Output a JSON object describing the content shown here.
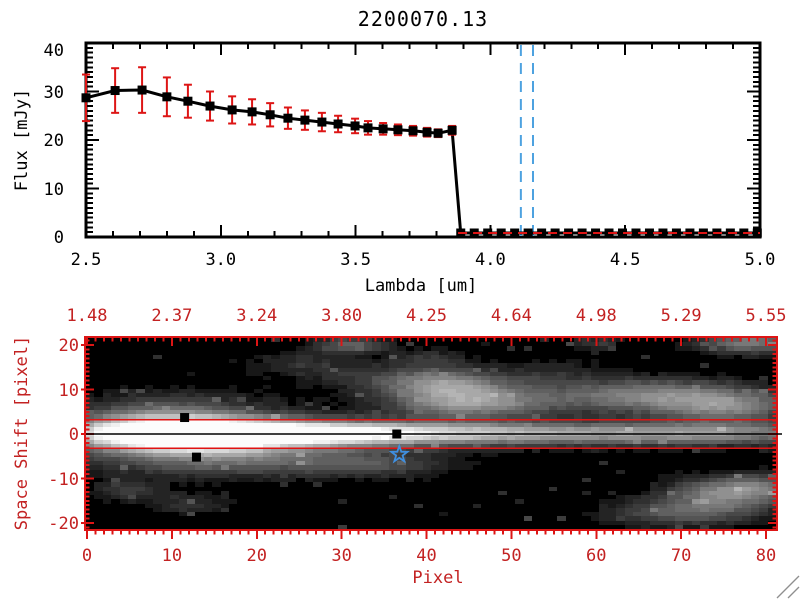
{
  "title": "2200070.13",
  "chart_data": [
    {
      "id": "spectrum-plot",
      "type": "line",
      "title": "2200070.13",
      "xlabel": "Lambda [um]",
      "ylabel": "Flux [mJy]",
      "xlim": [
        2.5,
        5.0
      ],
      "ylim": [
        0,
        40
      ],
      "grid": false,
      "x_ticks": {
        "values": [
          2.5,
          3.0,
          3.5,
          4.0,
          4.5,
          5.0
        ],
        "labels": [
          "2.5",
          "3.0",
          "3.5",
          "4.0",
          "4.5",
          "5.0"
        ],
        "minor_step": 0.1
      },
      "y_ticks": {
        "values": [
          0,
          10,
          20,
          30,
          40
        ],
        "labels": [
          "0",
          "10",
          "20",
          "30",
          "40"
        ],
        "minor_step": 1
      },
      "frame_color": "#000000",
      "series": [
        {
          "name": "spectrum",
          "line_color": "#000000",
          "marker": "square",
          "marker_color": "#000000",
          "error_color": "#dd1515",
          "x": [
            2.5,
            2.608,
            2.708,
            2.8,
            2.878,
            2.96,
            3.042,
            3.116,
            3.183,
            3.249,
            3.312,
            3.375,
            3.435,
            3.498,
            3.546,
            3.602,
            3.657,
            3.713,
            3.765,
            3.806,
            3.858,
            3.89,
            3.94,
            3.99,
            4.04,
            4.09,
            4.14,
            4.19,
            4.24,
            4.29,
            4.34,
            4.39,
            4.44,
            4.49,
            4.54,
            4.59,
            4.64,
            4.69,
            4.74,
            4.79,
            4.84,
            4.89,
            4.94,
            4.99
          ],
          "y": [
            28.7,
            30.2,
            30.3,
            28.9,
            28.0,
            27.0,
            26.2,
            25.8,
            25.2,
            24.5,
            24.1,
            23.7,
            23.3,
            22.9,
            22.5,
            22.3,
            22.1,
            21.9,
            21.6,
            21.4,
            22.0,
            0,
            0,
            0,
            0,
            0,
            0,
            0,
            0,
            0,
            0,
            0,
            0,
            0,
            0,
            0,
            0,
            0,
            0,
            0,
            0,
            0,
            0,
            0
          ],
          "yerr": [
            4.8,
            4.6,
            4.7,
            4.0,
            3.4,
            3.0,
            2.8,
            2.6,
            2.4,
            2.2,
            2.0,
            1.9,
            1.7,
            1.5,
            1.4,
            1.2,
            1.1,
            1.0,
            0.9,
            0.8,
            0.9,
            0,
            0,
            0,
            0,
            0,
            0,
            0,
            0,
            0,
            0,
            0,
            0,
            0,
            0,
            0,
            0,
            0,
            0,
            0,
            0,
            0,
            0,
            0
          ]
        }
      ],
      "zero_line": {
        "y": 0,
        "x_start": 3.88,
        "x_end": 5.0,
        "color": "#dd1515",
        "style": "dashed"
      },
      "vlines": {
        "x": [
          4.113,
          4.158
        ],
        "color": "#4da2e0",
        "style": "dashed"
      }
    },
    {
      "id": "spatial-map-plot",
      "type": "heatmap",
      "xlabel": "Pixel",
      "ylabel": "Space Shift [pixel]",
      "xlim": [
        0,
        80
      ],
      "ylim": [
        -21.7,
        21.7
      ],
      "axis_color": "#c32222",
      "tick_color": "#dd1515",
      "x_ticks": {
        "values": [
          0,
          10,
          20,
          30,
          40,
          50,
          60,
          70,
          80
        ],
        "labels": [
          "0",
          "10",
          "20",
          "30",
          "40",
          "50",
          "60",
          "70",
          "80"
        ],
        "minor_step": 1
      },
      "y_ticks": {
        "values": [
          -20,
          -10,
          0,
          10,
          20
        ],
        "labels": [
          "-20",
          "-10",
          "0",
          "10",
          "20"
        ],
        "minor_step": 1
      },
      "top_axis_labels": [
        "1.48",
        "2.37",
        "3.24",
        "3.80",
        "4.25",
        "4.64",
        "4.98",
        "5.29",
        "5.55"
      ],
      "aperture_lines": {
        "y": [
          3.2,
          -3.2
        ],
        "color": "#e01212"
      },
      "center_line": {
        "y": 0,
        "color": "#000000"
      },
      "markers": [
        {
          "x": 11.5,
          "y": 3.7
        },
        {
          "x": 12.9,
          "y": -5.2
        },
        {
          "x": 36.5,
          "y": 0
        }
      ],
      "marker_color": "#000000",
      "star_marker": {
        "x": 36.8,
        "y": -4.6,
        "color": "#3f8fe0"
      },
      "colormap": "grayscale",
      "blobs": [
        [
          3,
          0,
          5,
          2.2,
          0.5
        ],
        [
          12,
          0,
          6,
          2.2,
          1.05
        ],
        [
          22,
          0,
          8,
          2.0,
          0.8
        ],
        [
          33,
          0,
          9,
          1.9,
          0.5
        ],
        [
          45,
          0,
          12,
          1.8,
          0.38
        ],
        [
          60,
          0,
          14,
          1.8,
          0.3
        ],
        [
          75,
          0,
          10,
          1.8,
          0.32
        ],
        [
          13,
          0,
          9,
          5,
          0.3
        ],
        [
          11,
          -3,
          9,
          3.5,
          0.25
        ],
        [
          8,
          4,
          6,
          3,
          0.22
        ],
        [
          22,
          -6,
          9,
          2.5,
          0.18
        ],
        [
          34,
          -7,
          6,
          2,
          0.2
        ],
        [
          42,
          11,
          5,
          2.5,
          0.5
        ],
        [
          45,
          6.5,
          6,
          2.2,
          0.45
        ],
        [
          58,
          9,
          10,
          2.5,
          0.22
        ],
        [
          70,
          7,
          8,
          2.5,
          0.28
        ],
        [
          76,
          6,
          5,
          2.5,
          0.3
        ],
        [
          75,
          -14,
          5,
          2.5,
          0.38
        ],
        [
          70,
          -18,
          6,
          2,
          0.28
        ],
        [
          79,
          -12,
          4,
          2,
          0.28
        ],
        [
          5,
          -13,
          3,
          1.6,
          0.17
        ],
        [
          12,
          -16,
          3,
          1.5,
          0.15
        ],
        [
          31,
          20,
          3,
          1.3,
          0.3
        ],
        [
          78,
          20.5,
          4,
          1.6,
          0.42
        ],
        [
          60,
          20.5,
          2,
          1,
          0.18
        ],
        [
          25,
          16,
          4,
          2,
          0.13
        ],
        [
          33,
          13,
          5,
          2,
          0.13
        ],
        [
          40,
          17,
          3,
          1.5,
          0.15
        ],
        [
          55,
          14,
          4,
          2,
          0.1
        ],
        [
          68,
          10,
          6,
          2,
          0.15
        ]
      ]
    }
  ],
  "corner_hatch": {
    "color": "#8f8f8f"
  }
}
